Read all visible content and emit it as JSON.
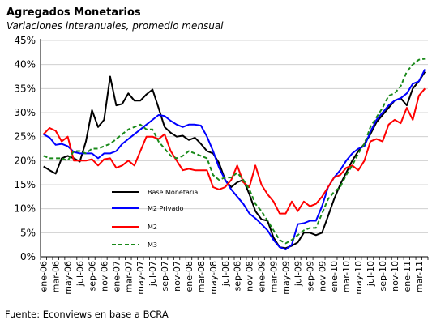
{
  "chart_data": {
    "type": "line",
    "title": "Agregados Monetarios",
    "subtitle": "Variaciones interanuales, promedio mensual",
    "source": "Fuente: Econviews en base a BCRA",
    "ylim": [
      0,
      45
    ],
    "yticks": [
      "0%",
      "5%",
      "10%",
      "15%",
      "20%",
      "25%",
      "30%",
      "35%",
      "40%",
      "45%"
    ],
    "grid": true,
    "legend_position": "center-left",
    "x": [
      "ene-06",
      "feb-06",
      "mar-06",
      "abr-06",
      "may-06",
      "jun-06",
      "jul-06",
      "ago-06",
      "sep-06",
      "oct-06",
      "nov-06",
      "dic-06",
      "ene-07",
      "feb-07",
      "mar-07",
      "abr-07",
      "may-07",
      "jun-07",
      "jul-07",
      "ago-07",
      "sep-07",
      "oct-07",
      "nov-07",
      "dic-07",
      "ene-08",
      "feb-08",
      "mar-08",
      "abr-08",
      "may-08",
      "jun-08",
      "jul-08",
      "ago-08",
      "sep-08",
      "oct-08",
      "nov-08",
      "dic-08",
      "ene-09",
      "feb-09",
      "mar-09",
      "abr-09",
      "may-09",
      "jun-09",
      "jul-09",
      "ago-09",
      "sep-09",
      "oct-09",
      "nov-09",
      "dic-09",
      "ene-10",
      "feb-10",
      "mar-10",
      "abr-10",
      "may-10",
      "jun-10",
      "jul-10",
      "ago-10",
      "sep-10",
      "oct-10",
      "nov-10",
      "dic-10",
      "ene-11",
      "feb-11",
      "mar-11",
      "abr-11"
    ],
    "xtick_labels": [
      "ene-06",
      "mar-06",
      "may-06",
      "jul-06",
      "sep-06",
      "nov-06",
      "ene-07",
      "mar-07",
      "may-07",
      "jul-07",
      "sep-07",
      "nov-07",
      "ene-08",
      "mar-08",
      "may-08",
      "jul-08",
      "sep-08",
      "nov-08",
      "ene-09",
      "mar-09",
      "may-09",
      "jul-09",
      "sep-09",
      "nov-09",
      "ene-10",
      "mar-10",
      "may-10",
      "jul-10",
      "sep-10",
      "nov-10",
      "ene-11",
      "mar-11"
    ],
    "series": [
      {
        "name": "Base Monetaria",
        "color": "#000000",
        "dash": "solid",
        "values": [
          18.8,
          18.0,
          17.3,
          20.5,
          21.0,
          20.5,
          19.8,
          24.0,
          30.5,
          27.0,
          28.5,
          37.5,
          31.5,
          31.8,
          34.0,
          32.5,
          32.5,
          33.8,
          34.8,
          31.0,
          27.0,
          25.8,
          25.0,
          25.2,
          24.3,
          24.8,
          23.5,
          22.0,
          21.5,
          19.5,
          16.0,
          14.5,
          15.5,
          16.0,
          13.0,
          9.5,
          7.8,
          7.5,
          4.0,
          2.0,
          1.8,
          2.3,
          3.0,
          5.0,
          5.0,
          4.5,
          5.0,
          8.5,
          12.0,
          15.0,
          17.5,
          20.0,
          22.0,
          23.5,
          25.5,
          28.0,
          29.5,
          31.0,
          32.5,
          33.0,
          31.5,
          35.0,
          36.5,
          38.5
        ]
      },
      {
        "name": "M2 Privado",
        "color": "#0000ff",
        "dash": "solid",
        "values": [
          25.5,
          24.8,
          23.3,
          23.5,
          23.0,
          21.8,
          21.5,
          21.5,
          21.5,
          20.5,
          21.5,
          21.5,
          22.0,
          23.5,
          24.5,
          25.5,
          26.5,
          27.5,
          28.5,
          29.5,
          29.3,
          28.3,
          27.5,
          27.0,
          27.5,
          27.5,
          27.3,
          25.0,
          22.0,
          18.5,
          16.0,
          14.0,
          12.5,
          11.0,
          9.0,
          8.0,
          6.8,
          5.5,
          3.5,
          2.0,
          1.5,
          2.5,
          6.8,
          7.0,
          7.5,
          7.5,
          10.5,
          14.5,
          16.5,
          18.0,
          20.0,
          21.5,
          22.5,
          23.0,
          26.0,
          28.5,
          30.0,
          31.5,
          32.5,
          33.0,
          34.0,
          36.0,
          36.5,
          39.0
        ]
      },
      {
        "name": "M2",
        "color": "#ff0000",
        "dash": "solid",
        "values": [
          25.5,
          26.8,
          26.2,
          24.0,
          25.0,
          20.0,
          20.0,
          20.0,
          20.3,
          19.0,
          20.3,
          20.5,
          18.5,
          19.0,
          20.0,
          19.0,
          22.0,
          25.0,
          25.0,
          24.5,
          25.5,
          22.0,
          20.0,
          18.0,
          18.3,
          18.0,
          18.0,
          18.0,
          14.5,
          14.0,
          14.5,
          16.0,
          19.0,
          15.5,
          14.5,
          19.0,
          15.0,
          13.0,
          11.5,
          9.0,
          9.0,
          11.5,
          9.5,
          11.5,
          10.5,
          11.0,
          12.5,
          14.5,
          16.5,
          17.0,
          18.5,
          19.0,
          18.0,
          20.0,
          24.0,
          24.5,
          24.0,
          27.5,
          28.5,
          27.8,
          31.0,
          28.5,
          33.5,
          35.0
        ]
      },
      {
        "name": "M3",
        "color": "#1a8a1a",
        "dash": "dashed",
        "values": [
          21.0,
          20.5,
          20.5,
          20.5,
          20.0,
          22.0,
          22.0,
          21.5,
          22.5,
          22.5,
          23.0,
          23.5,
          24.5,
          25.5,
          26.5,
          27.0,
          27.5,
          26.5,
          26.5,
          24.0,
          22.5,
          21.0,
          20.5,
          21.0,
          22.0,
          21.5,
          21.0,
          20.5,
          17.0,
          16.0,
          16.5,
          16.5,
          17.5,
          16.0,
          14.0,
          11.0,
          9.5,
          7.5,
          5.5,
          3.5,
          2.8,
          3.5,
          4.5,
          5.5,
          6.0,
          6.0,
          9.0,
          12.0,
          13.5,
          14.5,
          17.0,
          19.0,
          21.5,
          23.5,
          27.0,
          29.0,
          31.0,
          33.5,
          34.0,
          35.5,
          38.5,
          40.0,
          41.0,
          41.2
        ]
      }
    ]
  }
}
